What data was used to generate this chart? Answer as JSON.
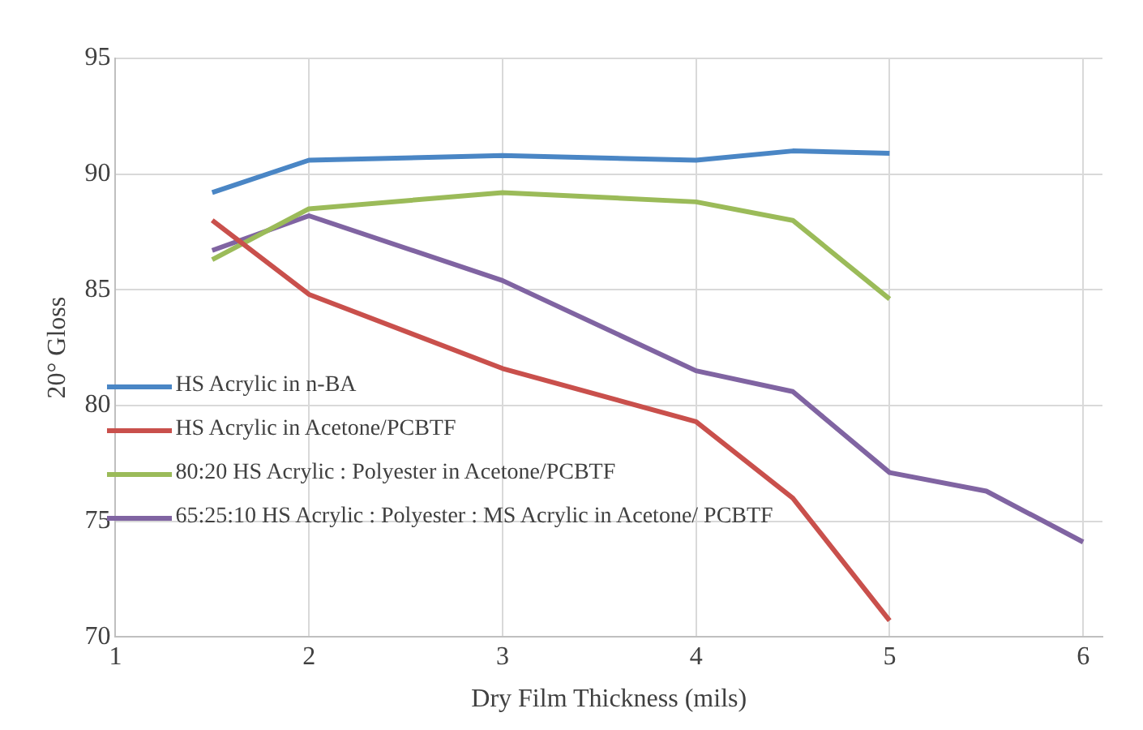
{
  "chart_data": {
    "type": "line",
    "xlabel": "Dry Film Thickness (mils)",
    "ylabel": "20° Gloss",
    "xlim": [
      1,
      6.1
    ],
    "xticks": [
      1,
      2,
      3,
      4,
      5,
      6
    ],
    "ylim": [
      70,
      95
    ],
    "yticks": [
      70,
      75,
      80,
      85,
      90,
      95
    ],
    "grid": true,
    "legend": "left",
    "marker": "none",
    "line_style": "solid",
    "series": [
      {
        "name": "HS Acrylic in n-BA",
        "color": "#4a86c5",
        "x": [
          1.5,
          2,
          3,
          4,
          4.5,
          5
        ],
        "values": [
          89.2,
          90.6,
          90.8,
          90.6,
          91.0,
          90.9
        ]
      },
      {
        "name": "HS Acrylic in Acetone/PCBTF",
        "color": "#c9504c",
        "x": [
          1.5,
          2,
          3,
          4,
          4.5,
          5
        ],
        "values": [
          88.0,
          84.8,
          81.6,
          79.3,
          76.0,
          70.7
        ]
      },
      {
        "name": "80:20 HS Acrylic : Polyester in Acetone/PCBTF",
        "color": "#9bbb59",
        "x": [
          1.5,
          2,
          3,
          4,
          4.5,
          5
        ],
        "values": [
          86.3,
          88.5,
          89.2,
          88.8,
          88.0,
          84.6
        ]
      },
      {
        "name": "65:25:10 HS Acrylic : Polyester : MS Acrylic in Acetone/ PCBTF",
        "color": "#8064a2",
        "x": [
          1.5,
          2,
          3,
          4,
          4.5,
          5,
          5.5,
          6
        ],
        "values": [
          86.7,
          88.2,
          85.4,
          81.5,
          80.6,
          77.1,
          76.3,
          74.1
        ]
      }
    ]
  }
}
